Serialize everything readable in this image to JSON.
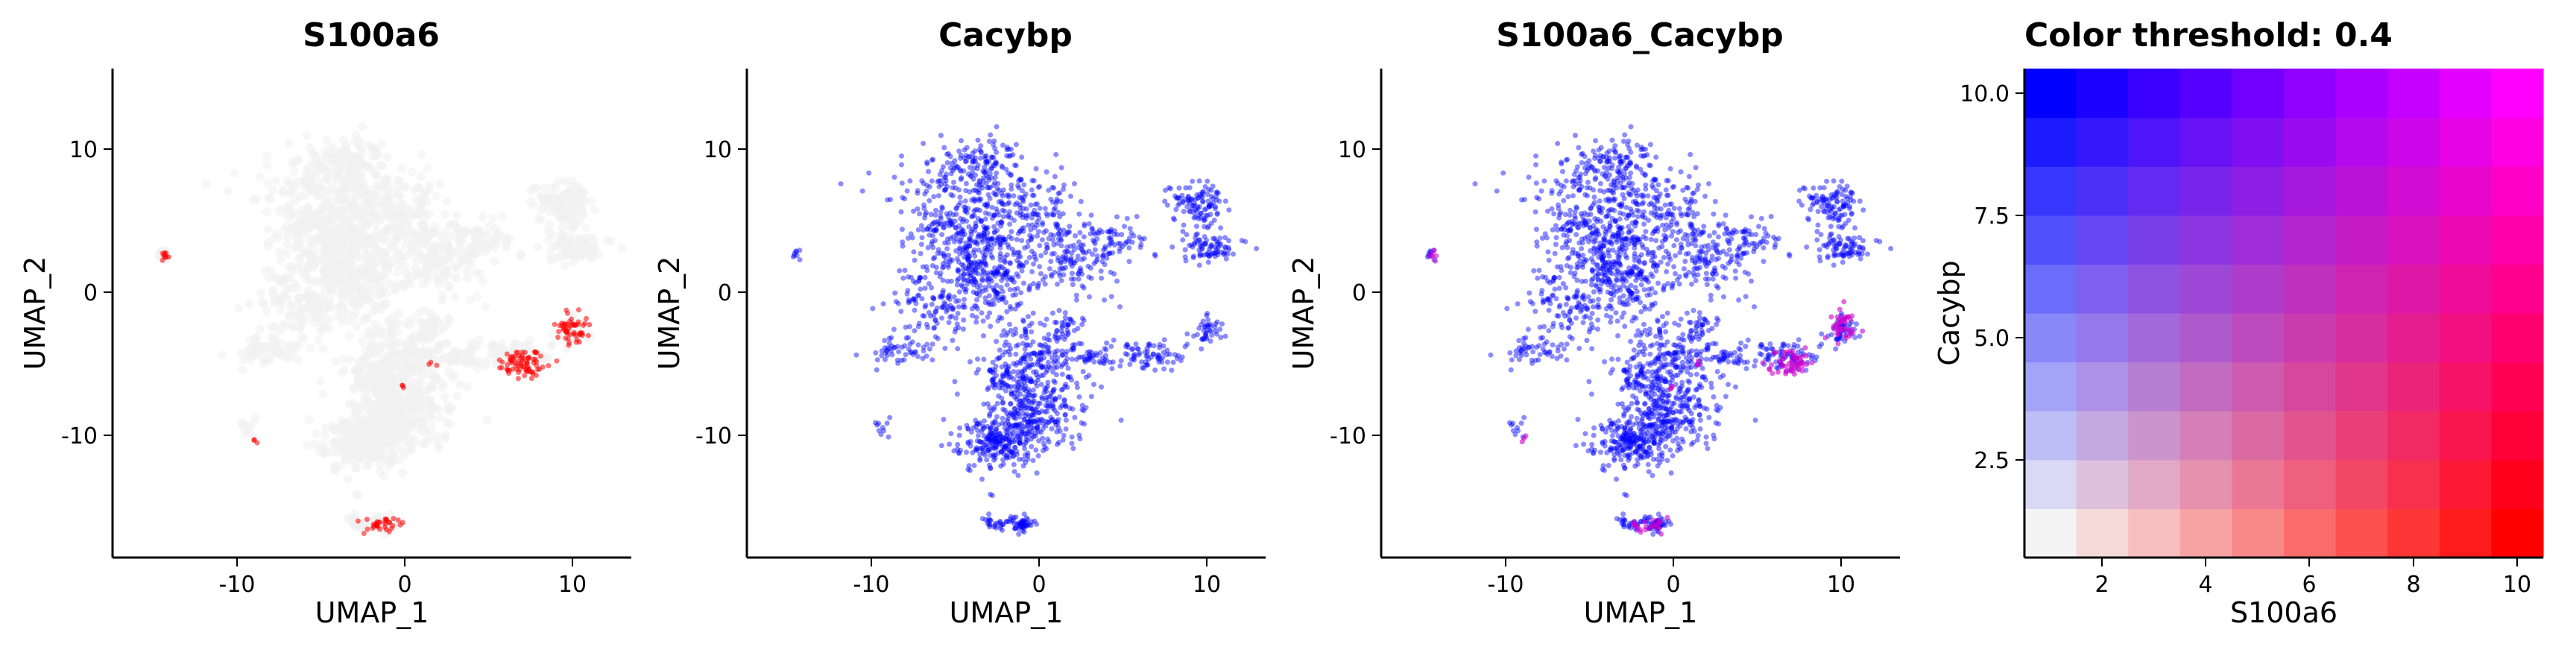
{
  "chart_data": [
    {
      "type": "scatter",
      "title": "S100a6",
      "xlabel": "UMAP_1",
      "ylabel": "UMAP_2",
      "xlim": [
        -17.5,
        13.5
      ],
      "ylim": [
        -18.5,
        15.5
      ],
      "xticks": [
        "-10",
        "0",
        "10"
      ],
      "yticks": [
        "10",
        "0",
        "-10"
      ],
      "grid": false,
      "background_color": "#f1f1f1",
      "point_color": "#ff0000",
      "highlight_clusters": [
        {
          "x": 10.0,
          "y": -2.6,
          "sx": 0.5,
          "sy": 0.5
        },
        {
          "x": 7.0,
          "y": -5.0,
          "sx": 0.7,
          "sy": 0.5
        },
        {
          "x": -1.5,
          "y": -16.2,
          "sx": 0.6,
          "sy": 0.25
        },
        {
          "x": -14.5,
          "y": 2.5,
          "sx": 0.2,
          "sy": 0.2
        },
        {
          "x": 1.6,
          "y": -5.0,
          "sx": 0.1,
          "sy": 0.1
        },
        {
          "x": -0.2,
          "y": -6.6,
          "sx": 0.1,
          "sy": 0.1
        },
        {
          "x": -9.0,
          "y": -10.3,
          "sx": 0.1,
          "sy": 0.1
        }
      ]
    },
    {
      "type": "scatter",
      "title": "Cacybp",
      "xlabel": "UMAP_1",
      "ylabel": "UMAP_2",
      "xlim": [
        -17.5,
        13.5
      ],
      "ylim": [
        -18.5,
        15.5
      ],
      "xticks": [
        "-10",
        "0",
        "10"
      ],
      "yticks": [
        "10",
        "0",
        "-10"
      ],
      "grid": false,
      "point_color": "#0000ff"
    },
    {
      "type": "scatter",
      "title": "S100a6_Cacybp",
      "xlabel": "UMAP_1",
      "ylabel": "UMAP_2",
      "xlim": [
        -17.5,
        13.5
      ],
      "ylim": [
        -18.5,
        15.5
      ],
      "xticks": [
        "-10",
        "0",
        "10"
      ],
      "yticks": [
        "10",
        "0",
        "-10"
      ],
      "grid": false,
      "point_color": "#0000ff",
      "overlap_color": "#cc00cc"
    },
    {
      "type": "heatmap",
      "title": "Color threshold: 0.4",
      "xlabel": "S100a6",
      "ylabel": "Cacybp",
      "xlim": [
        0.5,
        10.5
      ],
      "ylim": [
        0.5,
        10.5
      ],
      "xticks": [
        "2",
        "4",
        "6",
        "8",
        "10"
      ],
      "yticks": [
        "10.0",
        "7.5",
        "5.0",
        "2.5"
      ],
      "grid_size": 10,
      "x_color": "#ff0000",
      "y_color": "#0000ff",
      "low_color": "#f4f4f4"
    }
  ]
}
